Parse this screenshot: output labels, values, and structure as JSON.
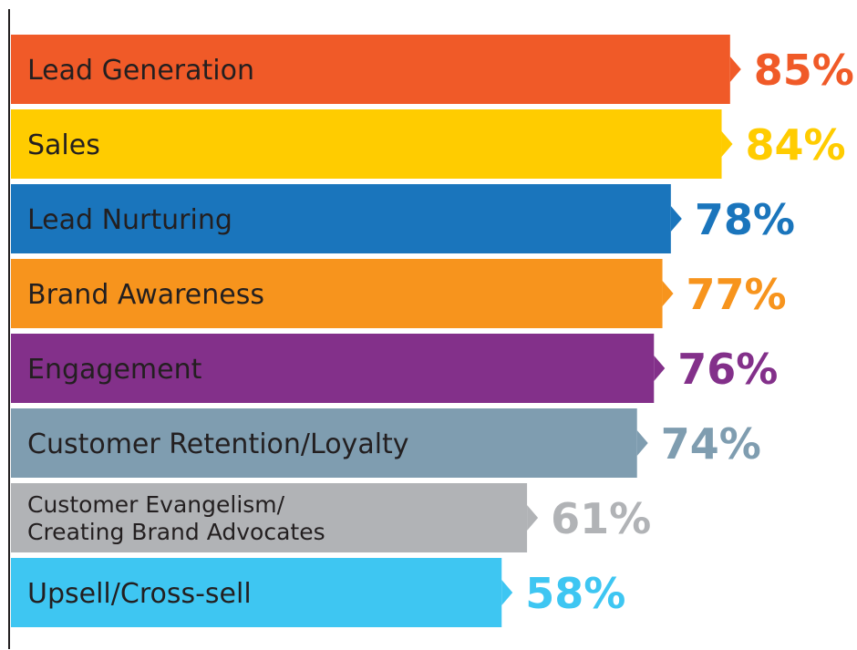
{
  "chart_data": {
    "type": "bar",
    "orientation": "horizontal",
    "categories": [
      "Lead Generation",
      "Sales",
      "Lead Nurturing",
      "Brand Awareness",
      "Engagement",
      "Customer Retention/Loyalty",
      "Customer Evangelism/ Creating Brand Advocates",
      "Upsell/Cross-sell"
    ],
    "category_lines": [
      [
        "Lead Generation"
      ],
      [
        "Sales"
      ],
      [
        "Lead Nurturing"
      ],
      [
        "Brand Awareness"
      ],
      [
        "Engagement"
      ],
      [
        "Customer Retention/Loyalty"
      ],
      [
        "Customer Evangelism/",
        "Creating Brand Advocates"
      ],
      [
        "Upsell/Cross-sell"
      ]
    ],
    "values": [
      85,
      84,
      78,
      77,
      76,
      74,
      61,
      58
    ],
    "value_labels": [
      "85%",
      "84%",
      "78%",
      "77%",
      "76%",
      "74%",
      "61%",
      "58%"
    ],
    "colors": [
      "#f05a28",
      "#ffcc00",
      "#1a75bc",
      "#f7941d",
      "#83308a",
      "#7f9db0",
      "#b1b3b6",
      "#3ec6f2"
    ],
    "unit": "%",
    "xlim": [
      0,
      100
    ],
    "grid": false,
    "legend": "none"
  }
}
